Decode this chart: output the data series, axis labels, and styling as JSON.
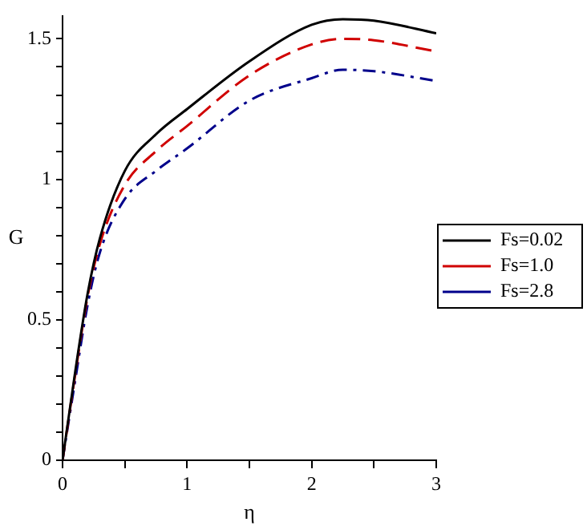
{
  "chart_data": {
    "type": "line",
    "xlabel": "η",
    "ylabel": "G",
    "xlim": [
      0,
      3
    ],
    "ylim": [
      0,
      1.58
    ],
    "xticks": [
      0,
      {
        "value": 0.5,
        "label": null
      },
      1,
      {
        "value": 1.5,
        "label": null
      },
      2,
      {
        "value": 2.5,
        "label": null
      },
      3
    ],
    "yticks": [
      0,
      {
        "value": 0.1,
        "label": null
      },
      {
        "value": 0.2,
        "label": null
      },
      {
        "value": 0.3,
        "label": null
      },
      {
        "value": 0.4,
        "label": null
      },
      0.5,
      {
        "value": 0.6,
        "label": null
      },
      {
        "value": 0.7,
        "label": null
      },
      {
        "value": 0.8,
        "label": null
      },
      {
        "value": 0.9,
        "label": null
      },
      1,
      {
        "value": 1.1,
        "label": null
      },
      {
        "value": 1.2,
        "label": null
      },
      {
        "value": 1.3,
        "label": null
      },
      {
        "value": 1.4,
        "label": null
      },
      1.5
    ],
    "grid": false,
    "legend": "right",
    "marker": "none",
    "x": [
      0,
      0.1,
      0.2,
      0.3,
      0.5,
      0.75,
      1,
      1.5,
      2,
      2.25,
      2.5,
      3
    ],
    "series": [
      {
        "name": "Fs=0.02",
        "color": "#000000",
        "line_style": "solid",
        "values": [
          0,
          0.31,
          0.59,
          0.79,
          1.03,
          1.16,
          1.25,
          1.42,
          1.55,
          1.57,
          1.565,
          1.52
        ]
      },
      {
        "name": "Fs=1.0",
        "color": "#d00000",
        "line_style": "dashed",
        "values": [
          0,
          0.3,
          0.58,
          0.77,
          0.98,
          1.1,
          1.19,
          1.37,
          1.48,
          1.5,
          1.495,
          1.455
        ]
      },
      {
        "name": "Fs=2.8",
        "color": "#00008b",
        "line_style": "dashdot",
        "values": [
          0,
          0.28,
          0.55,
          0.74,
          0.93,
          1.03,
          1.11,
          1.28,
          1.36,
          1.39,
          1.385,
          1.35
        ]
      }
    ]
  }
}
